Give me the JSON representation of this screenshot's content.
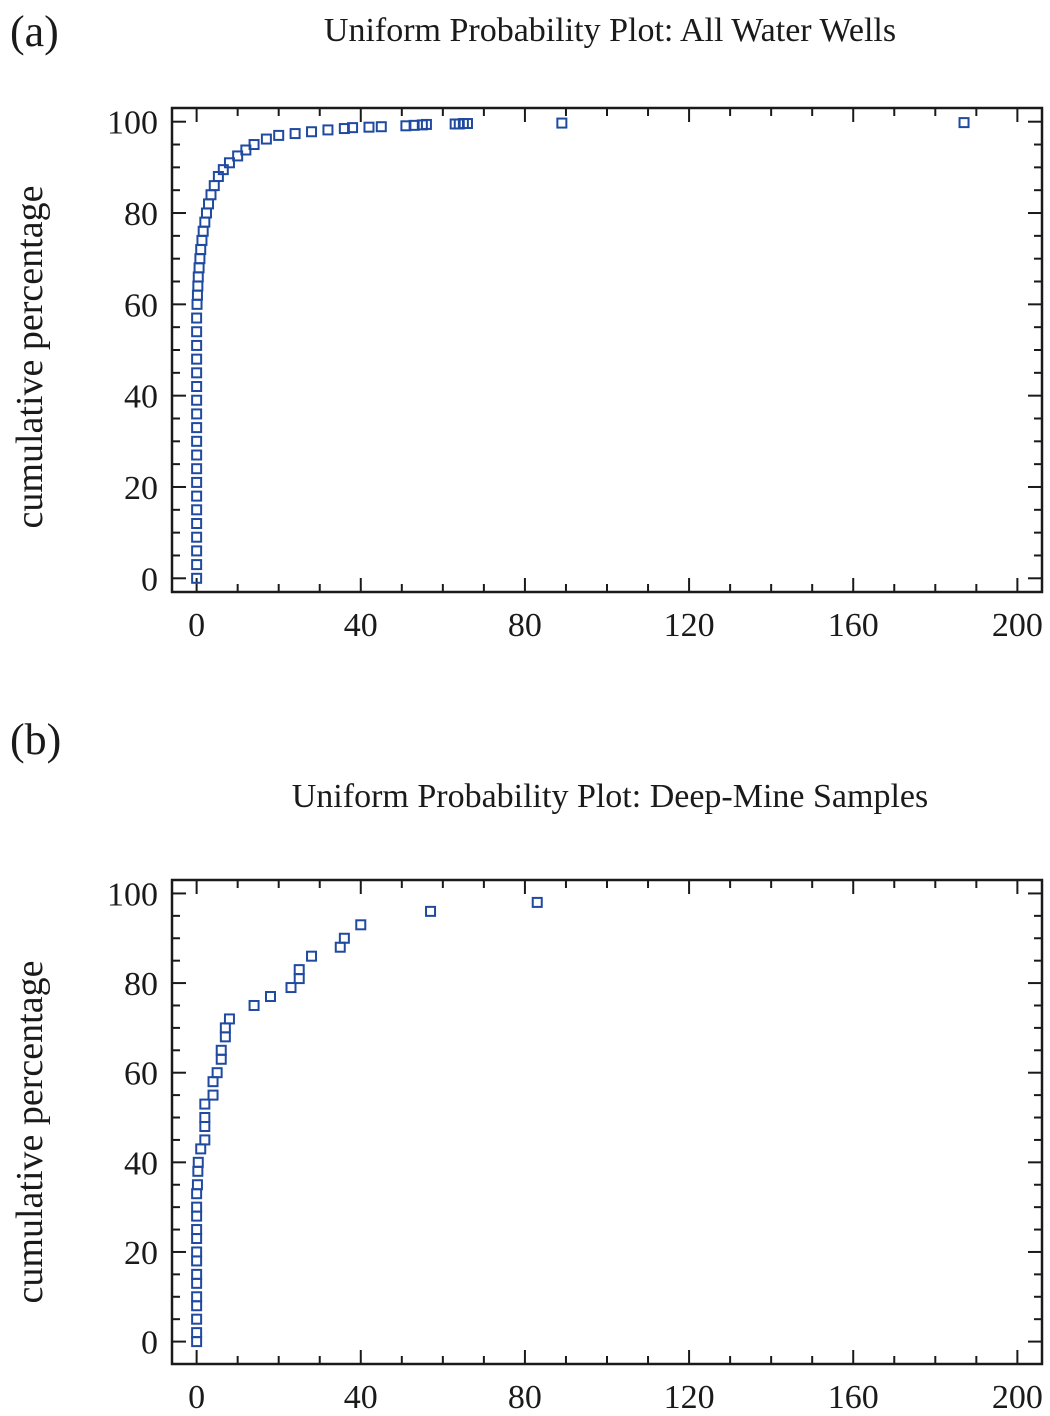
{
  "panels": [
    {
      "letter": "(a)",
      "title": "Uniform Probability Plot: All Water Wells",
      "ylabel": "cumulative percentage"
    },
    {
      "letter": "(b)",
      "title": "Uniform Probability Plot: Deep-Mine Samples",
      "ylabel": "cumulative percentage"
    }
  ],
  "chart_data": [
    {
      "type": "scatter",
      "title": "Uniform Probability Plot: All Water Wells",
      "xlabel": "",
      "ylabel": "cumulative percentage",
      "xlim": [
        -6,
        206
      ],
      "ylim": [
        -3,
        103
      ],
      "xticks": [
        0,
        40,
        80,
        120,
        160,
        200
      ],
      "yticks": [
        0,
        20,
        40,
        60,
        80,
        100
      ],
      "grid": false,
      "marker": "square",
      "marker_color": "#1f4aa0",
      "points": [
        [
          0,
          0
        ],
        [
          0,
          3
        ],
        [
          0,
          6
        ],
        [
          0,
          9
        ],
        [
          0,
          12
        ],
        [
          0,
          15
        ],
        [
          0,
          18
        ],
        [
          0,
          21
        ],
        [
          0,
          24
        ],
        [
          0,
          27
        ],
        [
          0,
          30
        ],
        [
          0,
          33
        ],
        [
          0,
          36
        ],
        [
          0,
          39
        ],
        [
          0,
          42
        ],
        [
          0,
          45
        ],
        [
          0,
          48
        ],
        [
          0,
          51
        ],
        [
          0,
          54
        ],
        [
          0,
          57
        ],
        [
          0.1,
          60
        ],
        [
          0.2,
          62
        ],
        [
          0.3,
          64
        ],
        [
          0.4,
          66
        ],
        [
          0.6,
          68
        ],
        [
          0.8,
          70
        ],
        [
          1.0,
          72
        ],
        [
          1.3,
          74
        ],
        [
          1.6,
          76
        ],
        [
          2.0,
          78
        ],
        [
          2.4,
          80
        ],
        [
          2.9,
          82
        ],
        [
          3.5,
          84
        ],
        [
          4.3,
          86
        ],
        [
          5.3,
          88
        ],
        [
          6.5,
          89.5
        ],
        [
          8,
          91
        ],
        [
          10,
          92.5
        ],
        [
          12,
          93.8
        ],
        [
          14,
          95
        ],
        [
          17,
          96.2
        ],
        [
          20,
          97
        ],
        [
          24,
          97.4
        ],
        [
          28,
          97.8
        ],
        [
          32,
          98.2
        ],
        [
          36,
          98.5
        ],
        [
          38,
          98.7
        ],
        [
          42,
          98.8
        ],
        [
          45,
          98.9
        ],
        [
          51,
          99.1
        ],
        [
          53,
          99.2
        ],
        [
          55,
          99.3
        ],
        [
          56,
          99.4
        ],
        [
          63,
          99.5
        ],
        [
          64,
          99.5
        ],
        [
          65,
          99.6
        ],
        [
          66,
          99.6
        ],
        [
          89,
          99.7
        ],
        [
          187,
          99.8
        ]
      ]
    },
    {
      "type": "scatter",
      "title": "Uniform Probability Plot: Deep-Mine Samples",
      "xlabel": "",
      "ylabel": "cumulative percentage",
      "xlim": [
        -6,
        206
      ],
      "ylim": [
        -5,
        103
      ],
      "xticks": [
        0,
        40,
        80,
        120,
        160,
        200
      ],
      "yticks": [
        0,
        20,
        40,
        60,
        80,
        100
      ],
      "grid": false,
      "marker": "square",
      "marker_color": "#1f4aa0",
      "points": [
        [
          0,
          0
        ],
        [
          0,
          2
        ],
        [
          0,
          5
        ],
        [
          0,
          8
        ],
        [
          0,
          10
        ],
        [
          0,
          13
        ],
        [
          0,
          15
        ],
        [
          0,
          18
        ],
        [
          0,
          20
        ],
        [
          0,
          23
        ],
        [
          0,
          25
        ],
        [
          0,
          28
        ],
        [
          0,
          30
        ],
        [
          0,
          33
        ],
        [
          0.2,
          35
        ],
        [
          0.3,
          38
        ],
        [
          0.4,
          40
        ],
        [
          1,
          43
        ],
        [
          2,
          45
        ],
        [
          2,
          48
        ],
        [
          2,
          50
        ],
        [
          2,
          53
        ],
        [
          4,
          55
        ],
        [
          4,
          58
        ],
        [
          5,
          60
        ],
        [
          6,
          63
        ],
        [
          6,
          65
        ],
        [
          7,
          68
        ],
        [
          7,
          70
        ],
        [
          8,
          72
        ],
        [
          14,
          75
        ],
        [
          18,
          77
        ],
        [
          23,
          79
        ],
        [
          25,
          81
        ],
        [
          25,
          83
        ],
        [
          28,
          86
        ],
        [
          35,
          88
        ],
        [
          36,
          90
        ],
        [
          40,
          93
        ],
        [
          57,
          96
        ],
        [
          83,
          98
        ]
      ]
    }
  ]
}
